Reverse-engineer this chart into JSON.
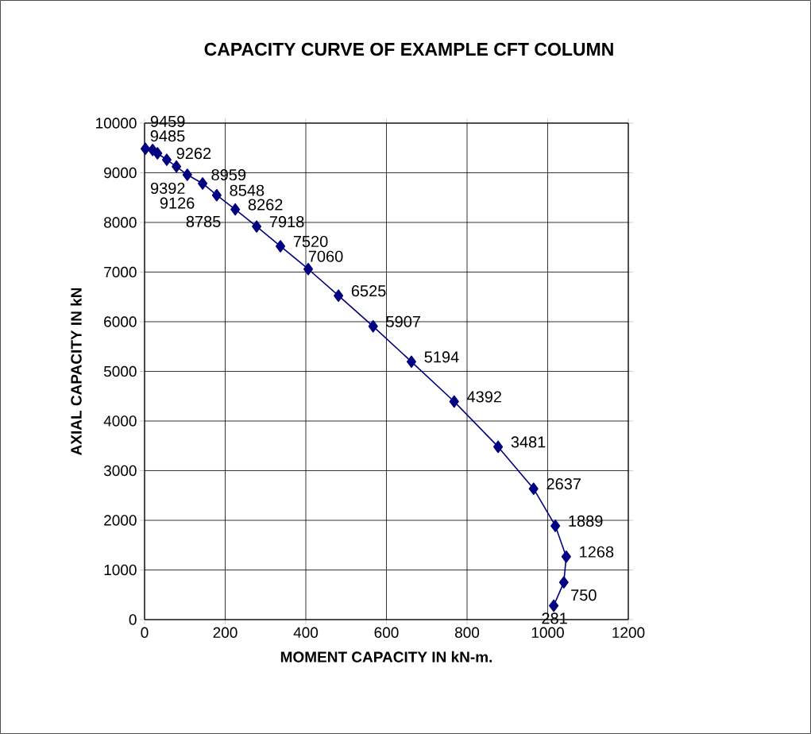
{
  "chart_data": {
    "type": "line",
    "title": "CAPACITY CURVE OF EXAMPLE CFT COLUMN",
    "xlabel": "MOMENT CAPACITY IN kN-m.",
    "ylabel": "AXIAL CAPACITY IN kN",
    "x": [
      2,
      20,
      32,
      55,
      79,
      106,
      144,
      179,
      225,
      278,
      337,
      406,
      481,
      567,
      662,
      768,
      877,
      965,
      1019,
      1046,
      1040,
      1015
    ],
    "values": [
      9485,
      9459,
      9392,
      9262,
      9126,
      8959,
      8785,
      8548,
      8262,
      7918,
      7520,
      7060,
      6525,
      5907,
      5194,
      4392,
      3481,
      2637,
      1889,
      1268,
      750,
      281
    ],
    "color": "#000080",
    "marker": "diamond",
    "line_style": "solid",
    "data_labels": true,
    "grid": true,
    "xlim": [
      0,
      1200
    ],
    "xticks": [
      0,
      200,
      400,
      600,
      800,
      1000,
      1200
    ],
    "ylim": [
      0,
      10000
    ],
    "yticks": [
      0,
      1000,
      2000,
      3000,
      4000,
      5000,
      6000,
      7000,
      8000,
      9000,
      10000
    ]
  }
}
